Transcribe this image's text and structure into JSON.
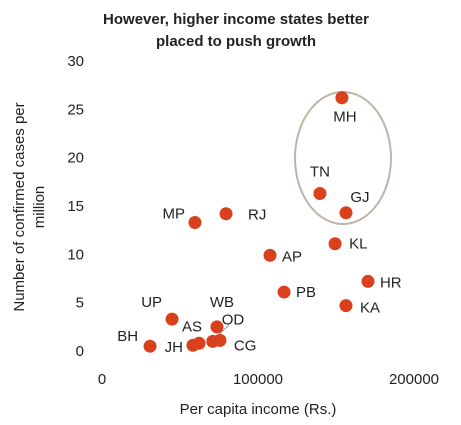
{
  "chart_data": {
    "type": "scatter",
    "title": [
      "However, higher income states better",
      "placed to push growth"
    ],
    "x_label": "Per capita income (Rs.)",
    "y_label": [
      "Number of confirmed cases per",
      "million"
    ],
    "color": "#d9411e",
    "labels": [
      "MH",
      "TN",
      "GJ",
      "MP",
      "RJ",
      "KL",
      "AP",
      "HR",
      "PB",
      "KA",
      "UP",
      "WB",
      "AS",
      "OD",
      "CG",
      "JH",
      "BH"
    ],
    "x": [
      153800,
      139700,
      156400,
      59600,
      79500,
      149400,
      107700,
      170500,
      116700,
      156400,
      44900,
      73700,
      62200,
      71000,
      75600,
      58300,
      30800
    ],
    "values": [
      26.3,
      16.4,
      14.4,
      13.4,
      14.3,
      11.2,
      10.0,
      7.3,
      6.2,
      4.8,
      3.4,
      2.6,
      0.9,
      1.1,
      1.2,
      0.7,
      0.6
    ],
    "xlim": [
      0,
      200000
    ],
    "xticks": [
      0,
      100000,
      200000
    ],
    "ylim": [
      0,
      30
    ],
    "yticks": [
      0,
      5,
      10,
      15,
      20,
      25,
      30
    ],
    "grid": false
  }
}
